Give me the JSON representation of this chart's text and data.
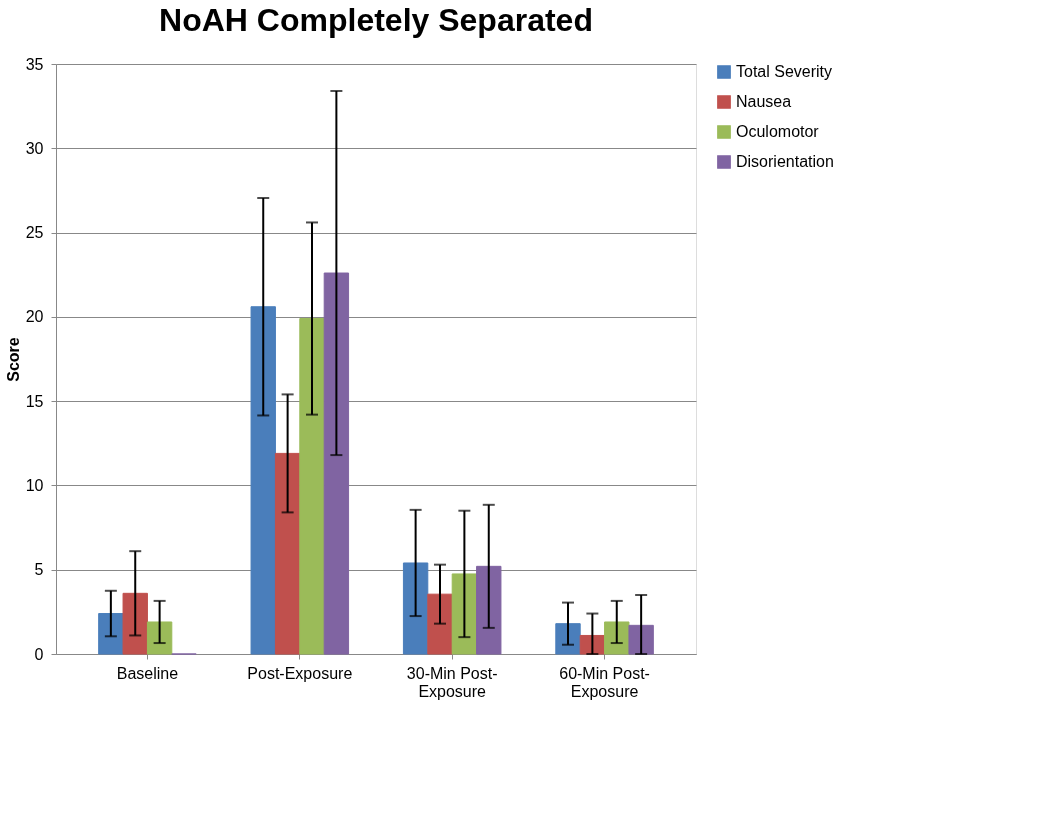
{
  "chart_data": {
    "type": "bar",
    "title": "NoAH Completely Separated",
    "ylabel": "Score",
    "categories": [
      "Baseline",
      "Post-Exposure",
      "30-Min Post-Exposure",
      "60-Min Post-Exposure"
    ],
    "series": [
      {
        "name": "Total Severity",
        "color": "#4a7ebb",
        "values": [
          2.4,
          20.6,
          5.4,
          1.8
        ],
        "errors": [
          1.35,
          6.45,
          3.15,
          1.25
        ]
      },
      {
        "name": "Nausea",
        "color": "#c0504d",
        "values": [
          3.6,
          11.9,
          3.55,
          1.1
        ],
        "errors": [
          2.5,
          3.5,
          1.75,
          [
            0,
            2.4
          ]
        ]
      },
      {
        "name": "Oculomotor",
        "color": "#9bbb59",
        "values": [
          1.9,
          19.9,
          4.75,
          1.9
        ],
        "errors": [
          1.25,
          5.7,
          3.75,
          1.25
        ]
      },
      {
        "name": "Disorientation",
        "color": "#8064a2",
        "values": [
          0,
          22.6,
          5.2,
          1.7
        ],
        "errors": [
          null,
          10.8,
          3.65,
          [
            0,
            3.5
          ]
        ]
      }
    ],
    "ylim": [
      0,
      35
    ],
    "yticks": [
      0,
      5,
      10,
      15,
      20,
      25,
      30,
      35
    ],
    "grid": "y",
    "legend": "right"
  }
}
